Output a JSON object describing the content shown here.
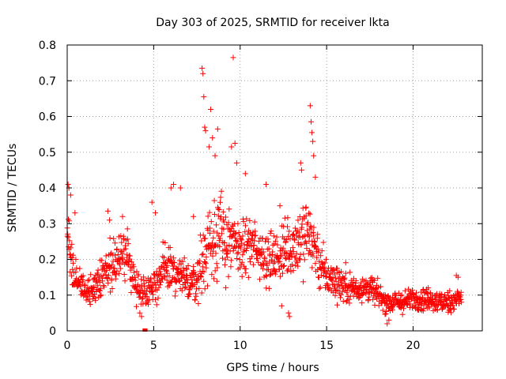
{
  "chart_data": {
    "type": "scatter",
    "title": "Day 303 of 2025, SRMTID for receiver lkta",
    "xlabel": "GPS time / hours",
    "ylabel": "SRMTID / TECUs",
    "xlim": [
      0,
      24
    ],
    "ylim": [
      0,
      0.8
    ],
    "x_ticks": [
      0,
      5,
      10,
      15,
      20
    ],
    "x_tick_labels": [
      "0",
      "5",
      "10",
      "15",
      "20"
    ],
    "y_ticks": [
      0,
      0.1,
      0.2,
      0.3,
      0.4,
      0.5,
      0.6,
      0.7,
      0.8
    ],
    "y_tick_labels": [
      "0",
      "0.1",
      "0.2",
      "0.3",
      "0.4",
      "0.5",
      "0.6",
      "0.7",
      "0.8"
    ],
    "grid": true,
    "marker": "+",
    "color": "#ff0000",
    "series": [
      {
        "name": "SRMTID",
        "profile": {
          "hours": [
            0.0,
            0.3,
            0.6,
            1.0,
            1.5,
            2.0,
            2.5,
            3.0,
            3.5,
            4.0,
            4.5,
            5.0,
            5.5,
            6.0,
            6.5,
            7.0,
            7.5,
            8.0,
            8.5,
            9.0,
            9.5,
            10.0,
            10.5,
            11.0,
            11.5,
            12.0,
            12.5,
            13.0,
            13.5,
            14.0,
            14.5,
            15.0,
            15.5,
            16.0,
            16.5,
            17.0,
            17.5,
            18.0,
            18.5,
            19.0,
            19.5,
            20.0,
            20.5,
            21.0,
            21.5,
            22.0,
            22.5,
            22.8
          ],
          "median": [
            0.3,
            0.18,
            0.13,
            0.11,
            0.12,
            0.15,
            0.19,
            0.2,
            0.21,
            0.12,
            0.11,
            0.13,
            0.16,
            0.17,
            0.15,
            0.14,
            0.14,
            0.22,
            0.28,
            0.26,
            0.24,
            0.23,
            0.24,
            0.23,
            0.21,
            0.2,
            0.22,
            0.24,
            0.26,
            0.28,
            0.2,
            0.15,
            0.14,
            0.13,
            0.12,
            0.12,
            0.12,
            0.1,
            0.08,
            0.08,
            0.08,
            0.09,
            0.09,
            0.09,
            0.08,
            0.08,
            0.09,
            0.09
          ],
          "spread": [
            0.1,
            0.06,
            0.04,
            0.03,
            0.04,
            0.05,
            0.06,
            0.06,
            0.06,
            0.04,
            0.04,
            0.05,
            0.06,
            0.07,
            0.06,
            0.05,
            0.06,
            0.1,
            0.12,
            0.11,
            0.09,
            0.08,
            0.08,
            0.07,
            0.07,
            0.07,
            0.08,
            0.09,
            0.1,
            0.11,
            0.08,
            0.05,
            0.05,
            0.05,
            0.04,
            0.04,
            0.04,
            0.03,
            0.03,
            0.03,
            0.03,
            0.03,
            0.03,
            0.03,
            0.03,
            0.03,
            0.03,
            0.03
          ]
        },
        "num_points": 1400,
        "outliers": [
          {
            "x": 0.05,
            "y": 0.41
          },
          {
            "x": 0.1,
            "y": 0.4
          },
          {
            "x": 0.2,
            "y": 0.38
          },
          {
            "x": 0.45,
            "y": 0.33
          },
          {
            "x": 2.35,
            "y": 0.335
          },
          {
            "x": 2.45,
            "y": 0.31
          },
          {
            "x": 3.2,
            "y": 0.32
          },
          {
            "x": 4.2,
            "y": 0.05
          },
          {
            "x": 4.3,
            "y": 0.04
          },
          {
            "x": 4.9,
            "y": 0.36
          },
          {
            "x": 5.1,
            "y": 0.33
          },
          {
            "x": 6.0,
            "y": 0.4
          },
          {
            "x": 6.15,
            "y": 0.41
          },
          {
            "x": 6.55,
            "y": 0.4
          },
          {
            "x": 7.3,
            "y": 0.32
          },
          {
            "x": 7.8,
            "y": 0.735
          },
          {
            "x": 7.85,
            "y": 0.72
          },
          {
            "x": 7.9,
            "y": 0.655
          },
          {
            "x": 7.95,
            "y": 0.57
          },
          {
            "x": 8.0,
            "y": 0.56
          },
          {
            "x": 8.2,
            "y": 0.515
          },
          {
            "x": 8.3,
            "y": 0.62
          },
          {
            "x": 8.4,
            "y": 0.54
          },
          {
            "x": 8.55,
            "y": 0.49
          },
          {
            "x": 8.7,
            "y": 0.565
          },
          {
            "x": 9.5,
            "y": 0.515
          },
          {
            "x": 9.6,
            "y": 0.765
          },
          {
            "x": 9.7,
            "y": 0.525
          },
          {
            "x": 9.8,
            "y": 0.47
          },
          {
            "x": 10.3,
            "y": 0.44
          },
          {
            "x": 11.5,
            "y": 0.41
          },
          {
            "x": 12.3,
            "y": 0.35
          },
          {
            "x": 12.4,
            "y": 0.07
          },
          {
            "x": 12.8,
            "y": 0.05
          },
          {
            "x": 12.85,
            "y": 0.04
          },
          {
            "x": 13.5,
            "y": 0.47
          },
          {
            "x": 13.55,
            "y": 0.45
          },
          {
            "x": 14.05,
            "y": 0.63
          },
          {
            "x": 14.1,
            "y": 0.585
          },
          {
            "x": 14.15,
            "y": 0.555
          },
          {
            "x": 14.2,
            "y": 0.53
          },
          {
            "x": 14.25,
            "y": 0.49
          },
          {
            "x": 14.35,
            "y": 0.43
          },
          {
            "x": 18.5,
            "y": 0.02
          },
          {
            "x": 18.6,
            "y": 0.03
          },
          {
            "x": 22.5,
            "y": 0.155
          },
          {
            "x": 22.6,
            "y": 0.15
          }
        ],
        "zero_markers": [
          4.45,
          4.55
        ]
      }
    ]
  }
}
